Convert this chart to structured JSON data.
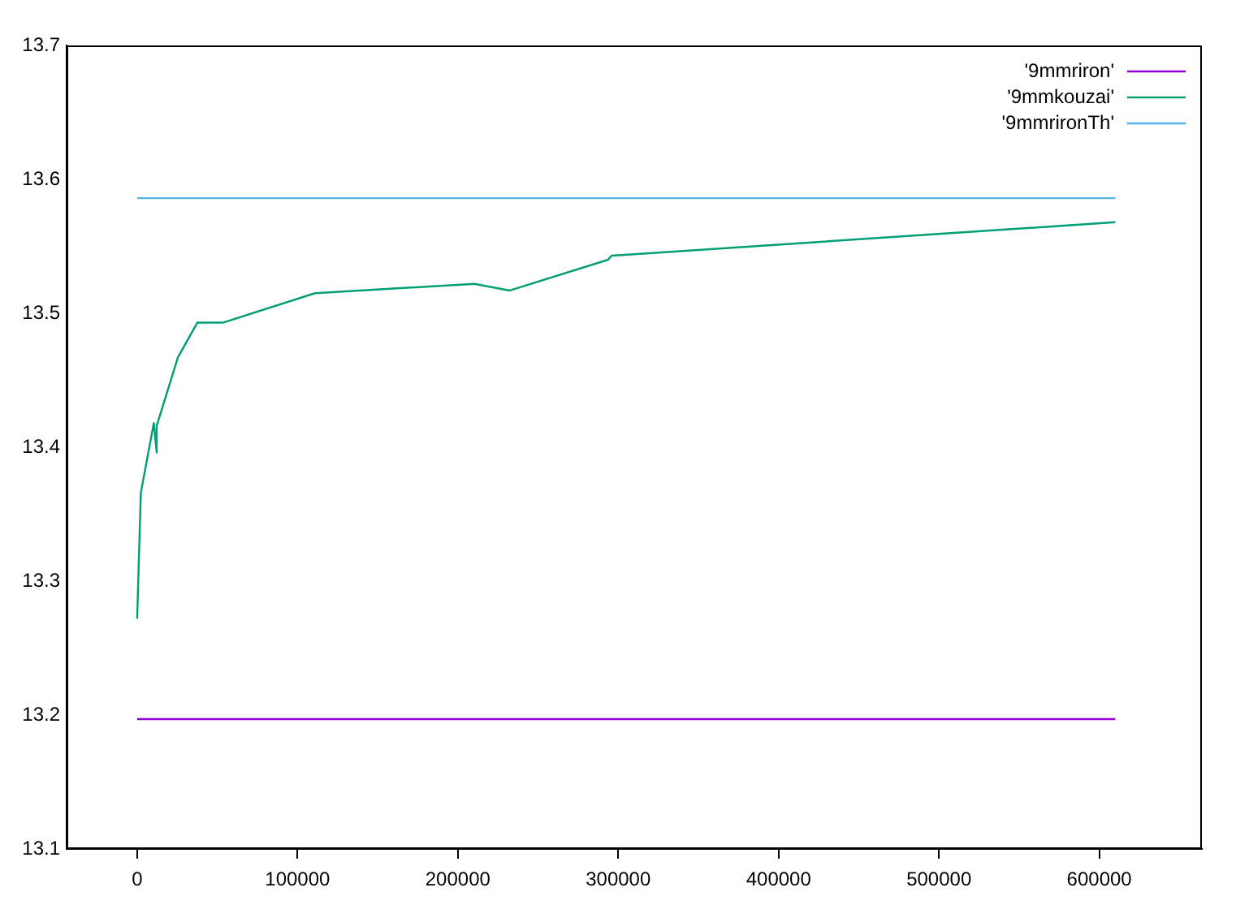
{
  "chart_data": {
    "type": "line",
    "xlim": [
      -44000,
      664000
    ],
    "xticks": [
      0,
      100000,
      200000,
      300000,
      400000,
      500000,
      600000
    ],
    "ylim": [
      13.1,
      13.7
    ],
    "yticks": [
      13.1,
      13.2,
      13.3,
      13.4,
      13.5,
      13.6,
      13.7
    ],
    "grid": false,
    "legend": "top right",
    "marker": "none",
    "line_style": "solid",
    "series": [
      {
        "name": "'9mmriron'",
        "color": "#9400d3",
        "x": [
          0,
          610000
        ],
        "values": [
          13.197,
          13.197
        ]
      },
      {
        "name": "'9mmkouzai'",
        "color": "#009e73",
        "x": [
          0,
          2300,
          10400,
          12200,
          12200,
          25400,
          37500,
          53400,
          110900,
          210300,
          232400,
          293700,
          295800,
          610000
        ],
        "values": [
          13.272,
          13.366,
          13.418,
          13.396,
          13.416,
          13.467,
          13.493,
          13.493,
          13.515,
          13.522,
          13.517,
          13.54,
          13.543,
          13.568
        ]
      },
      {
        "name": "'9mmrironTh'",
        "color": "#56b4e9",
        "x": [
          0,
          610000
        ],
        "values": [
          13.586,
          13.586
        ]
      }
    ]
  }
}
